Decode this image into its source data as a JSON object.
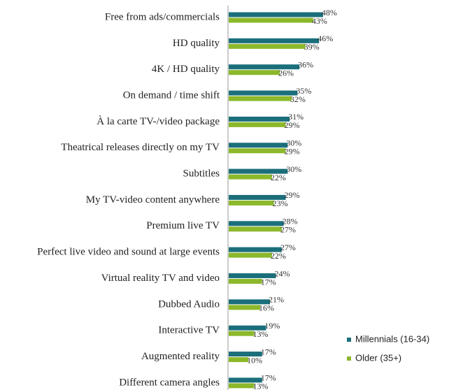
{
  "chart_data": {
    "type": "bar",
    "orientation": "horizontal",
    "categories": [
      "Free from ads/commercials",
      "HD quality",
      "4K / HD quality",
      "On demand / time shift",
      "À la carte TV-/video package",
      "Theatrical releases directly on my TV",
      "Subtitles",
      "My TV-video content anywhere",
      "Premium live TV",
      "Perfect live video and sound at large events",
      "Virtual reality TV and video",
      "Dubbed Audio",
      "Interactive TV",
      "Augmented reality",
      "Different camera angles"
    ],
    "series": [
      {
        "name": "Millennials (16-34)",
        "color": "#1b6f7b",
        "values": [
          48,
          46,
          36,
          35,
          31,
          30,
          30,
          29,
          28,
          27,
          24,
          21,
          19,
          17,
          17
        ],
        "value_labels": [
          "48%",
          "46%",
          "36%",
          "35%",
          "31%",
          "30%",
          "30%",
          "29%",
          "28%",
          "27%",
          "24%",
          "21%",
          "19%",
          "17%",
          "17%"
        ]
      },
      {
        "name": "Older (35+)",
        "color": "#8cb82b",
        "values": [
          43,
          39,
          26,
          32,
          29,
          29,
          22,
          23,
          27,
          22,
          17,
          16,
          13,
          10,
          13
        ],
        "value_labels": [
          "43%",
          "39%",
          "26%",
          "32%",
          "29%",
          "29%",
          "22%",
          "23%",
          "27%",
          "22%",
          "17%",
          "16%",
          "13%",
          "10%",
          "13%"
        ]
      }
    ],
    "legend": "right"
  }
}
